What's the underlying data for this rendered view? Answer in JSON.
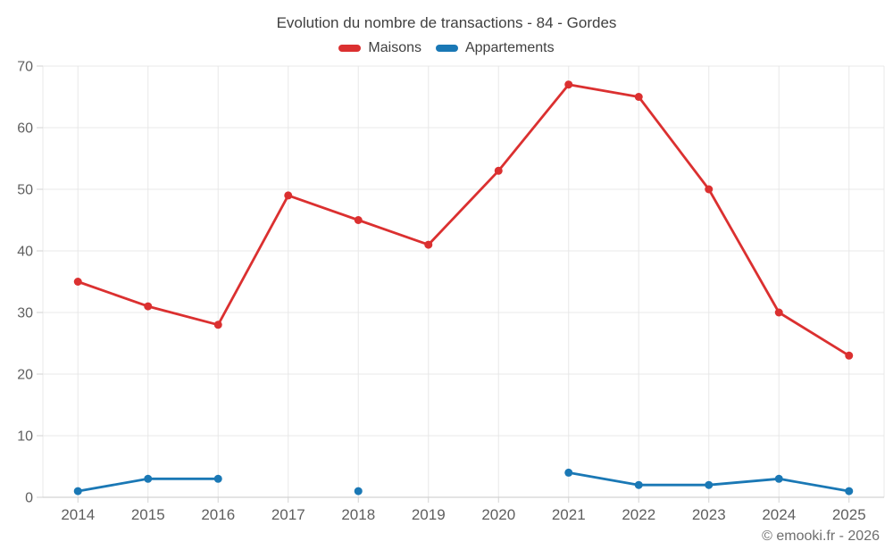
{
  "chart": {
    "title": "Evolution du nombre de transactions - 84 - Gordes",
    "footer_copyright": "© emooki.fr - 2026"
  },
  "chart_data": {
    "type": "line",
    "title": "Evolution du nombre de transactions - 84 - Gordes",
    "categories": [
      "2014",
      "2015",
      "2016",
      "2017",
      "2018",
      "2019",
      "2020",
      "2021",
      "2022",
      "2023",
      "2024",
      "2025"
    ],
    "series": [
      {
        "name": "Maisons",
        "color": "#db3030",
        "values": [
          35,
          31,
          28,
          49,
          45,
          41,
          53,
          67,
          65,
          50,
          30,
          23
        ]
      },
      {
        "name": "Appartements",
        "color": "#1a78b5",
        "values": [
          1,
          3,
          3,
          null,
          1,
          null,
          null,
          4,
          2,
          2,
          3,
          1
        ]
      }
    ],
    "ylim": [
      0,
      70
    ],
    "yticks": [
      0,
      10,
      20,
      30,
      40,
      50,
      60,
      70
    ],
    "grid": true,
    "legend_position": "top",
    "colors": {
      "axis_label": "#5f5f5f",
      "grid_line": "#e8e8e8",
      "axis_line": "#c9c9c9",
      "tick": "#d2d2d2"
    }
  }
}
